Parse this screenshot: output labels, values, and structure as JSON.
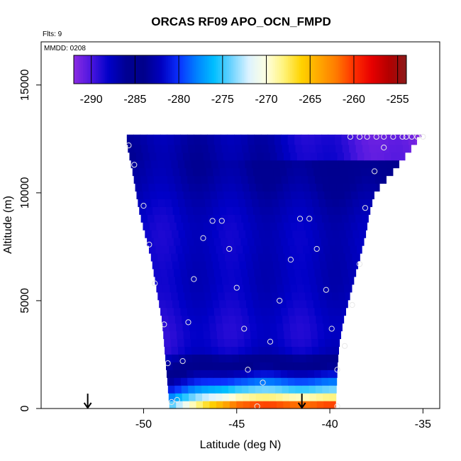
{
  "chart_data": {
    "type": "heatmap",
    "title": "ORCAS RF09 APO_OCN_FMPD",
    "annotations": {
      "flights": "Flts: 9",
      "date": "MMDD: 0208"
    },
    "xlabel": "Latitude (deg N)",
    "ylabel": "Altitude (m)",
    "xlim": [
      -55.5,
      -34.1
    ],
    "ylim": [
      0,
      17000
    ],
    "xticks": [
      -50,
      -45,
      -40,
      -35
    ],
    "xtick_labels": [
      "-50",
      "-45",
      "-40",
      "-35"
    ],
    "yticks": [
      0,
      5000,
      10000,
      15000
    ],
    "ytick_labels": [
      "0",
      "5000",
      "10000",
      "15000"
    ],
    "colorbar": {
      "placement": "top",
      "range": [
        -292,
        -254
      ],
      "ticks": [
        -290,
        -285,
        -280,
        -275,
        -270,
        -265,
        -260,
        -255
      ],
      "tick_labels": [
        "-290",
        "-285",
        "-280",
        "-275",
        "-270",
        "-265",
        "-260",
        "-255"
      ],
      "colors": [
        "#8B2BE2",
        "#4B16E0",
        "#0000C8",
        "#000092",
        "#00008B",
        "#0000C0",
        "#0A30FF",
        "#0080FF",
        "#00BFFF",
        "#6CD3FF",
        "#DDF3FF",
        "#FFFFE0",
        "#FFF37A",
        "#FFD300",
        "#FFA800",
        "#FF7A00",
        "#FF3000",
        "#E80000",
        "#B30000",
        "#8B1A1A"
      ]
    },
    "field_boundary": {
      "left": [
        [
          -50.9,
          12300
        ],
        [
          -50.6,
          11000
        ],
        [
          -50.4,
          10000
        ],
        [
          -50.2,
          9000
        ],
        [
          -49.9,
          8000
        ],
        [
          -49.6,
          7000
        ],
        [
          -49.4,
          6000
        ],
        [
          -49.2,
          5000
        ],
        [
          -49.0,
          4000
        ],
        [
          -48.9,
          3000
        ],
        [
          -48.8,
          2000
        ],
        [
          -48.6,
          0
        ]
      ],
      "right": [
        [
          -35.1,
          12700
        ],
        [
          -35.7,
          12000
        ],
        [
          -36.6,
          11000
        ],
        [
          -37.6,
          10000
        ],
        [
          -37.9,
          9000
        ],
        [
          -38.1,
          8000
        ],
        [
          -38.4,
          7000
        ],
        [
          -38.7,
          6000
        ],
        [
          -39.0,
          5000
        ],
        [
          -39.3,
          4000
        ],
        [
          -39.5,
          3000
        ],
        [
          -39.6,
          2000
        ],
        [
          -39.7,
          0
        ]
      ]
    },
    "field_model": {
      "surface_high_lat": -45,
      "surface_high_value": -257,
      "surface_low_lat": -49,
      "surface_low_value": -275,
      "mid_value": -289,
      "top_value": -287,
      "top_right_value": -292
    },
    "observations": [
      {
        "lat": -50.8,
        "alt": 12200
      },
      {
        "lat": -50.5,
        "alt": 11300
      },
      {
        "lat": -50.0,
        "alt": 9400
      },
      {
        "lat": -49.7,
        "alt": 7600
      },
      {
        "lat": -49.4,
        "alt": 5800
      },
      {
        "lat": -48.9,
        "alt": 3900
      },
      {
        "lat": -48.7,
        "alt": 2100
      },
      {
        "lat": -48.5,
        "alt": 300
      },
      {
        "lat": -48.2,
        "alt": 400
      },
      {
        "lat": -47.9,
        "alt": 2200
      },
      {
        "lat": -47.6,
        "alt": 4000
      },
      {
        "lat": -47.3,
        "alt": 6000
      },
      {
        "lat": -46.8,
        "alt": 7900
      },
      {
        "lat": -46.3,
        "alt": 8700
      },
      {
        "lat": -45.8,
        "alt": 8700
      },
      {
        "lat": -45.4,
        "alt": 7400
      },
      {
        "lat": -45.0,
        "alt": 5600
      },
      {
        "lat": -44.6,
        "alt": 3700
      },
      {
        "lat": -44.4,
        "alt": 1800
      },
      {
        "lat": -43.9,
        "alt": 100
      },
      {
        "lat": -43.6,
        "alt": 1200
      },
      {
        "lat": -43.2,
        "alt": 3100
      },
      {
        "lat": -42.7,
        "alt": 5000
      },
      {
        "lat": -42.1,
        "alt": 6900
      },
      {
        "lat": -41.6,
        "alt": 8800
      },
      {
        "lat": -41.1,
        "alt": 8800
      },
      {
        "lat": -40.7,
        "alt": 7400
      },
      {
        "lat": -40.2,
        "alt": 5500
      },
      {
        "lat": -39.9,
        "alt": 3700
      },
      {
        "lat": -39.6,
        "alt": 1800
      },
      {
        "lat": -39.6,
        "alt": 100
      },
      {
        "lat": -39.2,
        "alt": 2900
      },
      {
        "lat": -38.8,
        "alt": 4800
      },
      {
        "lat": -38.4,
        "alt": 6700
      },
      {
        "lat": -38.1,
        "alt": 9300
      },
      {
        "lat": -37.6,
        "alt": 11000
      },
      {
        "lat": -37.1,
        "alt": 12100
      },
      {
        "lat": -38.9,
        "alt": 12600
      },
      {
        "lat": -38.4,
        "alt": 12600
      },
      {
        "lat": -38.0,
        "alt": 12600
      },
      {
        "lat": -37.5,
        "alt": 12600
      },
      {
        "lat": -37.1,
        "alt": 12600
      },
      {
        "lat": -36.6,
        "alt": 12600
      },
      {
        "lat": -36.1,
        "alt": 12600
      },
      {
        "lat": -35.9,
        "alt": 12600
      },
      {
        "lat": -35.6,
        "alt": 12600
      },
      {
        "lat": -35.3,
        "alt": 12600
      },
      {
        "lat": -35.0,
        "alt": 12600
      }
    ],
    "surface_markers": [
      {
        "lat": -53.0
      },
      {
        "lat": -41.5
      }
    ],
    "grid": false,
    "legend": "none"
  }
}
